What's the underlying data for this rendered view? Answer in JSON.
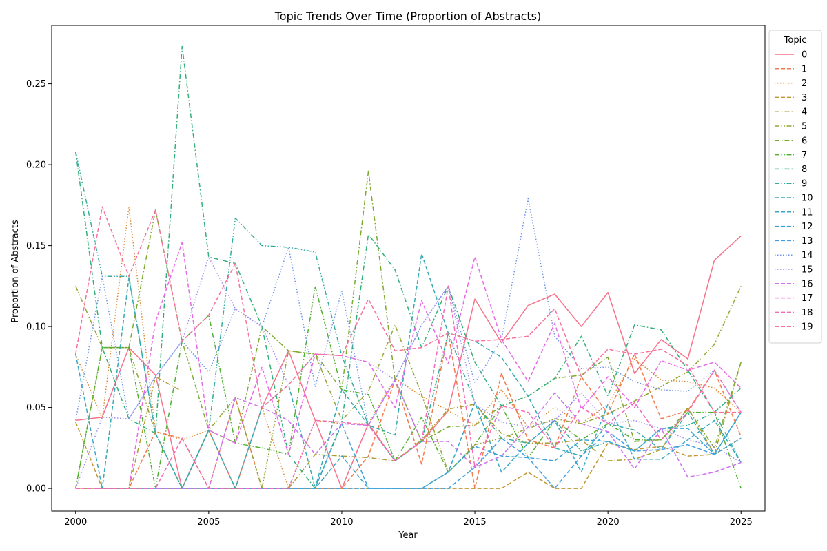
{
  "chart_data": {
    "type": "line",
    "title": "Topic Trends Over Time (Proportion of Abstracts)",
    "xlabel": "Year",
    "ylabel": "Proportion of Abstracts",
    "xlim": [
      1999.1,
      2025.9
    ],
    "ylim": [
      -0.014,
      0.286
    ],
    "xticks": [
      2000,
      2005,
      2010,
      2015,
      2020,
      2025
    ],
    "yticks": [
      0.0,
      0.05,
      0.1,
      0.15,
      0.2,
      0.25
    ],
    "ytick_labels": [
      "0.00",
      "0.05",
      "0.10",
      "0.15",
      "0.20",
      "0.25"
    ],
    "grid": false,
    "legend_title": "Topic",
    "legend_position": "outside-right",
    "x": [
      2000,
      2001,
      2002,
      2003,
      2004,
      2005,
      2006,
      2007,
      2008,
      2009,
      2010,
      2011,
      2012,
      2013,
      2014,
      2015,
      2016,
      2017,
      2018,
      2019,
      2020,
      2021,
      2022,
      2023,
      2024,
      2025
    ],
    "series": [
      {
        "name": "0",
        "color": "#f77189",
        "dash": "solid",
        "values": [
          0.042,
          0.044,
          0.087,
          0.07,
          0.0,
          0.036,
          0.0,
          0.05,
          0.085,
          0.042,
          0.0,
          0.04,
          0.017,
          0.029,
          0.048,
          0.117,
          0.09,
          0.113,
          0.12,
          0.1,
          0.121,
          0.071,
          0.092,
          0.08,
          0.141,
          0.156
        ]
      },
      {
        "name": "1",
        "color": "#f3794c",
        "dash": "dashed",
        "values": [
          0.0,
          0.0,
          0.0,
          0.035,
          0.031,
          0.0,
          0.056,
          0.0,
          0.0,
          0.0,
          0.0,
          0.02,
          0.067,
          0.015,
          0.096,
          0.0,
          0.071,
          0.03,
          0.025,
          0.069,
          0.046,
          0.083,
          0.043,
          0.048,
          0.073,
          0.032
        ]
      },
      {
        "name": "2",
        "color": "#dc8932",
        "dash": "dotted",
        "values": [
          0.083,
          0.043,
          0.174,
          0.035,
          0.03,
          0.036,
          0.0,
          0.05,
          0.0,
          0.042,
          0.04,
          0.04,
          0.068,
          0.057,
          0.048,
          0.039,
          0.061,
          0.038,
          0.05,
          0.04,
          0.052,
          0.08,
          0.067,
          0.066,
          0.062,
          0.047
        ]
      },
      {
        "name": "3",
        "color": "#c39532",
        "dash": "dashed",
        "values": [
          0.041,
          0.0,
          0.0,
          0.0,
          0.0,
          0.0,
          0.0,
          0.0,
          0.0,
          0.0,
          0.0,
          0.0,
          0.0,
          0.0,
          0.0,
          0.0,
          0.0,
          0.01,
          0.0,
          0.0,
          0.028,
          0.024,
          0.026,
          0.02,
          0.021,
          0.031
        ]
      },
      {
        "name": "4",
        "color": "#ae9d31",
        "dash": "dashdot",
        "values": [
          0.0,
          0.0,
          0.0,
          0.069,
          0.06,
          null,
          null,
          null,
          0.0,
          0.021,
          0.02,
          0.019,
          0.017,
          0.03,
          0.049,
          0.052,
          0.034,
          0.028,
          0.028,
          0.03,
          0.017,
          0.018,
          0.024,
          0.05,
          0.021,
          0.078
        ]
      },
      {
        "name": "5",
        "color": "#97a431",
        "dash": "dashdotdot",
        "values": [
          0.125,
          0.087,
          0.087,
          0.034,
          0.0,
          0.036,
          0.056,
          0.0,
          0.085,
          0.083,
          0.042,
          0.06,
          0.101,
          0.058,
          0.01,
          0.027,
          0.031,
          0.037,
          0.043,
          0.04,
          0.046,
          0.054,
          0.063,
          0.072,
          0.089,
          0.125
        ]
      },
      {
        "name": "6",
        "color": "#7dab31",
        "dash": "dashdot",
        "values": [
          0.0,
          0.087,
          0.087,
          0.172,
          0.091,
          0.036,
          0.028,
          0.1,
          0.085,
          0.083,
          0.061,
          0.196,
          0.067,
          0.029,
          0.038,
          0.039,
          0.051,
          0.057,
          0.068,
          0.07,
          0.081,
          0.029,
          0.03,
          0.049,
          0.025,
          0.078
        ]
      },
      {
        "name": "7",
        "color": "#4fb031",
        "dash": "dashdotdot",
        "values": [
          0.0,
          0.087,
          0.087,
          0.0,
          0.091,
          0.107,
          0.028,
          0.025,
          0.021,
          0.125,
          0.061,
          0.058,
          0.017,
          0.044,
          0.01,
          0.027,
          0.051,
          0.019,
          0.042,
          0.03,
          0.04,
          0.03,
          0.03,
          0.047,
          0.047,
          0.0
        ]
      },
      {
        "name": "8",
        "color": "#33b07a",
        "dash": "dashdot",
        "values": [
          0.208,
          0.087,
          0.043,
          0.034,
          0.273,
          0.143,
          0.139,
          0.1,
          0.021,
          0.0,
          0.041,
          0.157,
          0.135,
          0.087,
          0.125,
          0.078,
          0.051,
          0.057,
          0.068,
          0.094,
          0.057,
          0.101,
          0.098,
          0.073,
          0.047,
          0.062
        ]
      },
      {
        "name": "9",
        "color": "#35ad9c",
        "dash": "dashdotdot",
        "values": [
          0.208,
          0.131,
          0.131,
          0.034,
          0.0,
          0.036,
          0.167,
          0.15,
          0.149,
          0.146,
          0.082,
          0.039,
          0.017,
          0.029,
          0.096,
          0.053,
          0.031,
          0.028,
          0.042,
          0.023,
          0.029,
          0.023,
          0.037,
          0.039,
          0.047,
          0.016
        ]
      },
      {
        "name": "10",
        "color": "#36aab0",
        "dash": "dashed",
        "values": [
          0.0,
          0.0,
          0.13,
          0.034,
          0.0,
          0.036,
          0.0,
          0.05,
          0.064,
          0.0,
          0.061,
          0.039,
          0.033,
          0.145,
          0.096,
          0.091,
          0.081,
          0.057,
          0.025,
          0.02,
          0.04,
          0.036,
          0.024,
          0.047,
          0.021,
          0.047
        ]
      },
      {
        "name": "11",
        "color": "#38a7c4",
        "dash": "dashed",
        "values": [
          0.083,
          0.0,
          0.0,
          0.0,
          0.0,
          0.0,
          0.0,
          0.0,
          0.0,
          0.0,
          0.02,
          0.0,
          0.0,
          0.0,
          0.01,
          0.053,
          0.01,
          0.028,
          0.042,
          0.01,
          0.052,
          0.018,
          0.018,
          0.03,
          0.042,
          0.016
        ]
      },
      {
        "name": "12",
        "color": "#3ba3d7",
        "dash": "dashed",
        "values": [
          0.0,
          0.0,
          0.0,
          0.0,
          0.0,
          0.0,
          0.0,
          0.0,
          0.0,
          0.0,
          0.04,
          0.0,
          0.0,
          0.0,
          0.01,
          0.026,
          0.02,
          0.019,
          0.017,
          0.03,
          0.029,
          0.023,
          0.037,
          0.037,
          0.021,
          0.031
        ]
      },
      {
        "name": "13",
        "color": "#3ea0ec",
        "dash": "dashed",
        "values": [
          0.0,
          0.0,
          0.0,
          0.0,
          0.0,
          0.0,
          0.0,
          0.0,
          0.0,
          0.0,
          0.0,
          0.0,
          0.0,
          0.0,
          0.0,
          0.013,
          0.031,
          0.019,
          0.0,
          0.02,
          0.035,
          0.023,
          0.024,
          0.027,
          0.021,
          0.047
        ]
      },
      {
        "name": "14",
        "color": "#6e93ec",
        "dash": "dotted",
        "values": [
          0.042,
          0.131,
          0.043,
          0.069,
          0.091,
          0.072,
          0.111,
          0.1,
          0.149,
          0.063,
          0.122,
          0.039,
          0.067,
          0.101,
          0.125,
          0.065,
          0.092,
          0.179,
          0.094,
          0.074,
          0.075,
          0.066,
          0.061,
          0.06,
          0.073,
          0.047
        ]
      },
      {
        "name": "15",
        "color": "#a08df2",
        "dash": "dotted",
        "values": [
          0.0,
          0.044,
          0.043,
          0.069,
          0.091,
          0.143,
          0.111,
          0.1,
          0.064,
          0.083,
          0.082,
          0.078,
          0.067,
          0.101,
          0.125,
          0.052,
          0.041,
          0.038,
          0.042,
          0.059,
          0.04,
          0.042,
          0.037,
          0.03,
          0.026,
          0.016
        ]
      },
      {
        "name": "16",
        "color": "#cd72f0",
        "dash": "dashed",
        "values": [
          0.0,
          0.0,
          0.0,
          0.0,
          0.0,
          0.0,
          0.056,
          0.05,
          0.042,
          0.021,
          0.04,
          0.039,
          0.067,
          0.029,
          0.029,
          0.013,
          0.02,
          0.038,
          0.059,
          0.04,
          0.035,
          0.012,
          0.037,
          0.007,
          0.01,
          0.016
        ]
      },
      {
        "name": "17",
        "color": "#e869e5",
        "dash": "dashed",
        "values": [
          0.0,
          0.0,
          0.0,
          0.103,
          0.152,
          0.036,
          0.028,
          0.075,
          0.021,
          0.083,
          0.082,
          0.078,
          0.05,
          0.116,
          0.077,
          0.143,
          0.092,
          0.066,
          0.102,
          0.049,
          0.069,
          0.05,
          0.079,
          0.073,
          0.078,
          0.062
        ]
      },
      {
        "name": "18",
        "color": "#f569b7",
        "dash": "dashed",
        "values": [
          0.0,
          0.0,
          0.0,
          0.0,
          0.031,
          0.0,
          0.0,
          0.0,
          0.0,
          0.042,
          0.041,
          0.039,
          0.017,
          0.029,
          0.125,
          0.013,
          0.051,
          0.047,
          0.025,
          0.05,
          0.04,
          0.053,
          0.03,
          0.047,
          0.073,
          0.047
        ]
      },
      {
        "name": "19",
        "color": "#f6719b",
        "dash": "dashed",
        "values": [
          0.083,
          0.174,
          0.131,
          0.172,
          0.091,
          0.107,
          0.139,
          0.05,
          0.064,
          0.083,
          0.082,
          0.117,
          0.085,
          0.087,
          0.096,
          0.091,
          0.092,
          0.094,
          0.111,
          0.069,
          0.086,
          0.083,
          0.086,
          0.076,
          0.047,
          0.047
        ]
      }
    ]
  }
}
